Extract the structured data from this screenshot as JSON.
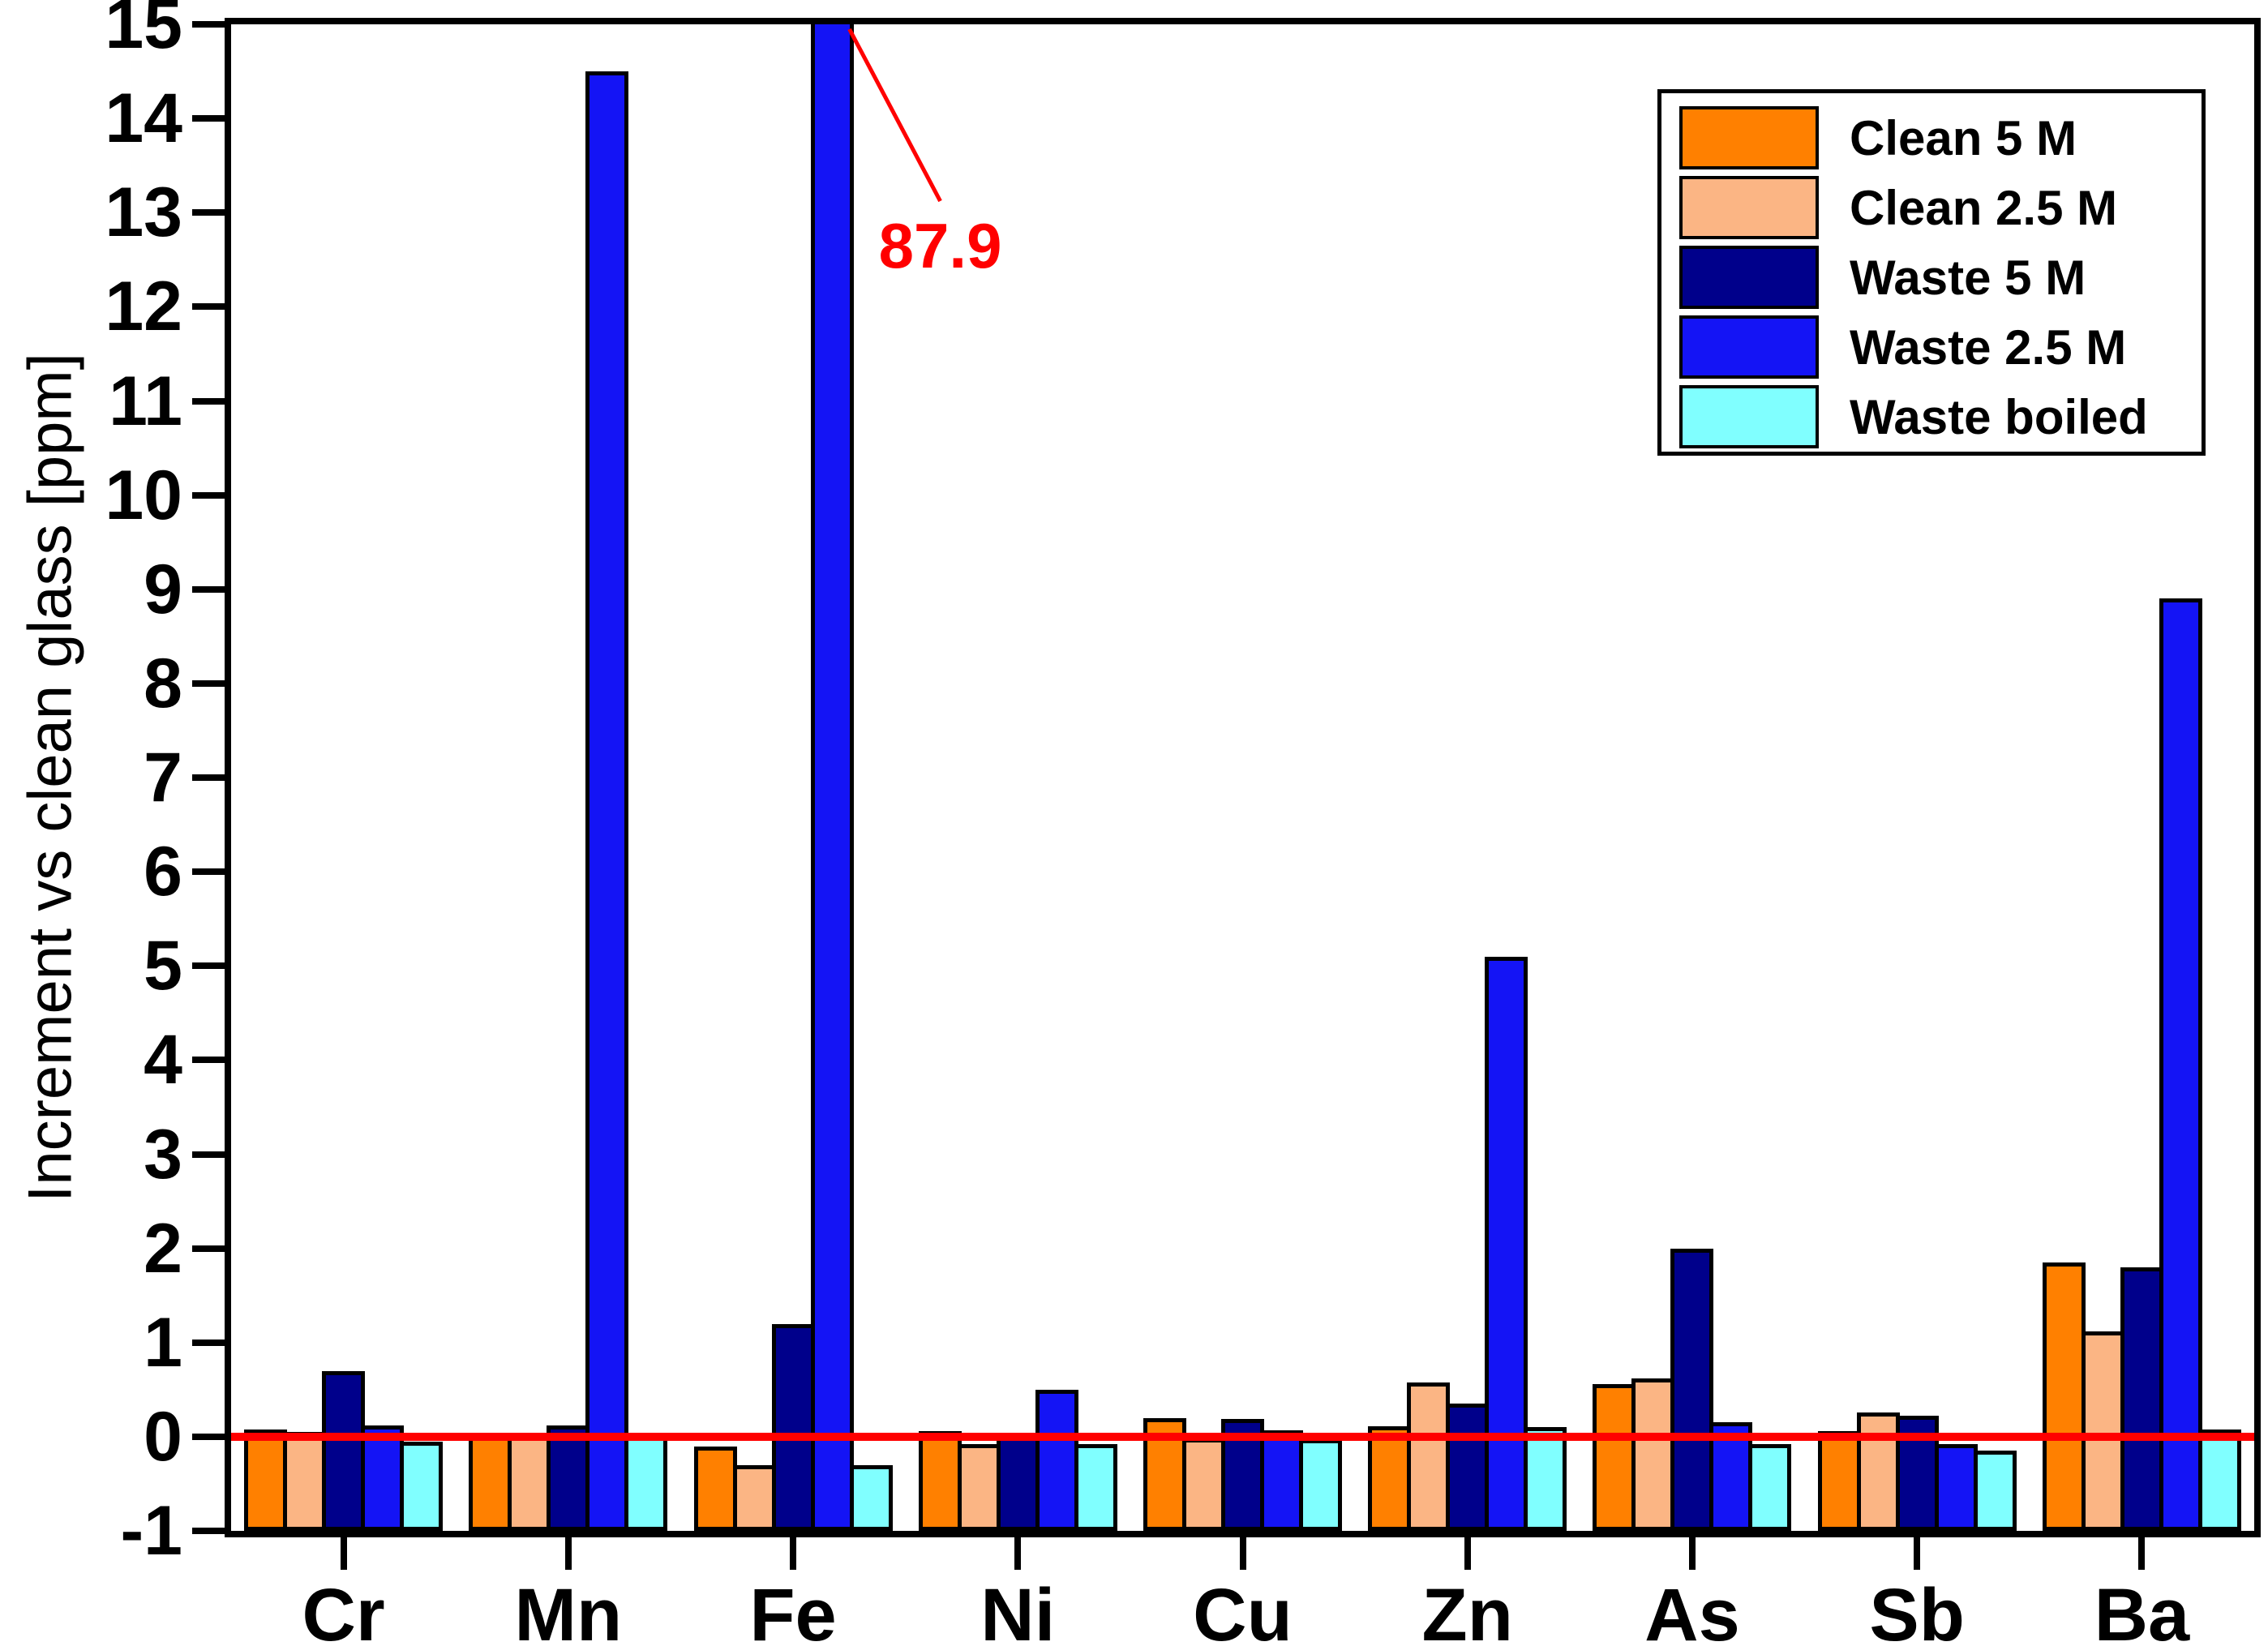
{
  "figure": {
    "background": "#FFFFFF",
    "axis_color": "#000000"
  },
  "chart_data": {
    "type": "bar",
    "title": "",
    "xlabel": "",
    "ylabel": "Increment vs clean glass [ppm]",
    "ylim": [
      -1,
      15
    ],
    "ytick_step": 1,
    "bar_baseline": -1,
    "grid": false,
    "legend_position": "top-right",
    "zero_line": {
      "y": 0,
      "color": "#FF0000"
    },
    "categories": [
      "Cr",
      "Mn",
      "Fe",
      "Ni",
      "Cu",
      "Zn",
      "As",
      "Sb",
      "Ba"
    ],
    "series": [
      {
        "name": "Clean 5 M",
        "color": "#FF8000",
        "values": [
          0.08,
          0.04,
          -0.1,
          0.06,
          0.2,
          0.11,
          0.56,
          0.06,
          1.85
        ]
      },
      {
        "name": "Clean 2.5 M",
        "color": "#FBB584",
        "values": [
          0.05,
          0.02,
          -0.3,
          -0.08,
          -0.02,
          0.58,
          0.62,
          0.26,
          1.12
        ]
      },
      {
        "name": "Waste 5 M",
        "color": "#00008B",
        "values": [
          0.7,
          0.12,
          1.2,
          0.03,
          0.19,
          0.35,
          2.0,
          0.22,
          1.8
        ]
      },
      {
        "name": "Waste 2.5 M",
        "color": "#1414F5",
        "values": [
          0.12,
          14.5,
          87.9,
          0.5,
          0.07,
          5.1,
          0.15,
          -0.08,
          8.9
        ]
      },
      {
        "name": "Waste boiled",
        "color": "#80FFFF",
        "values": [
          -0.05,
          0.0,
          -0.3,
          -0.08,
          -0.03,
          0.1,
          -0.08,
          -0.15,
          0.08
        ]
      }
    ],
    "annotation": {
      "text": "87.9",
      "series": "Waste 2.5 M",
      "category": "Fe",
      "color": "#FF0000",
      "note": "bar clipped at axis top (15)"
    }
  }
}
